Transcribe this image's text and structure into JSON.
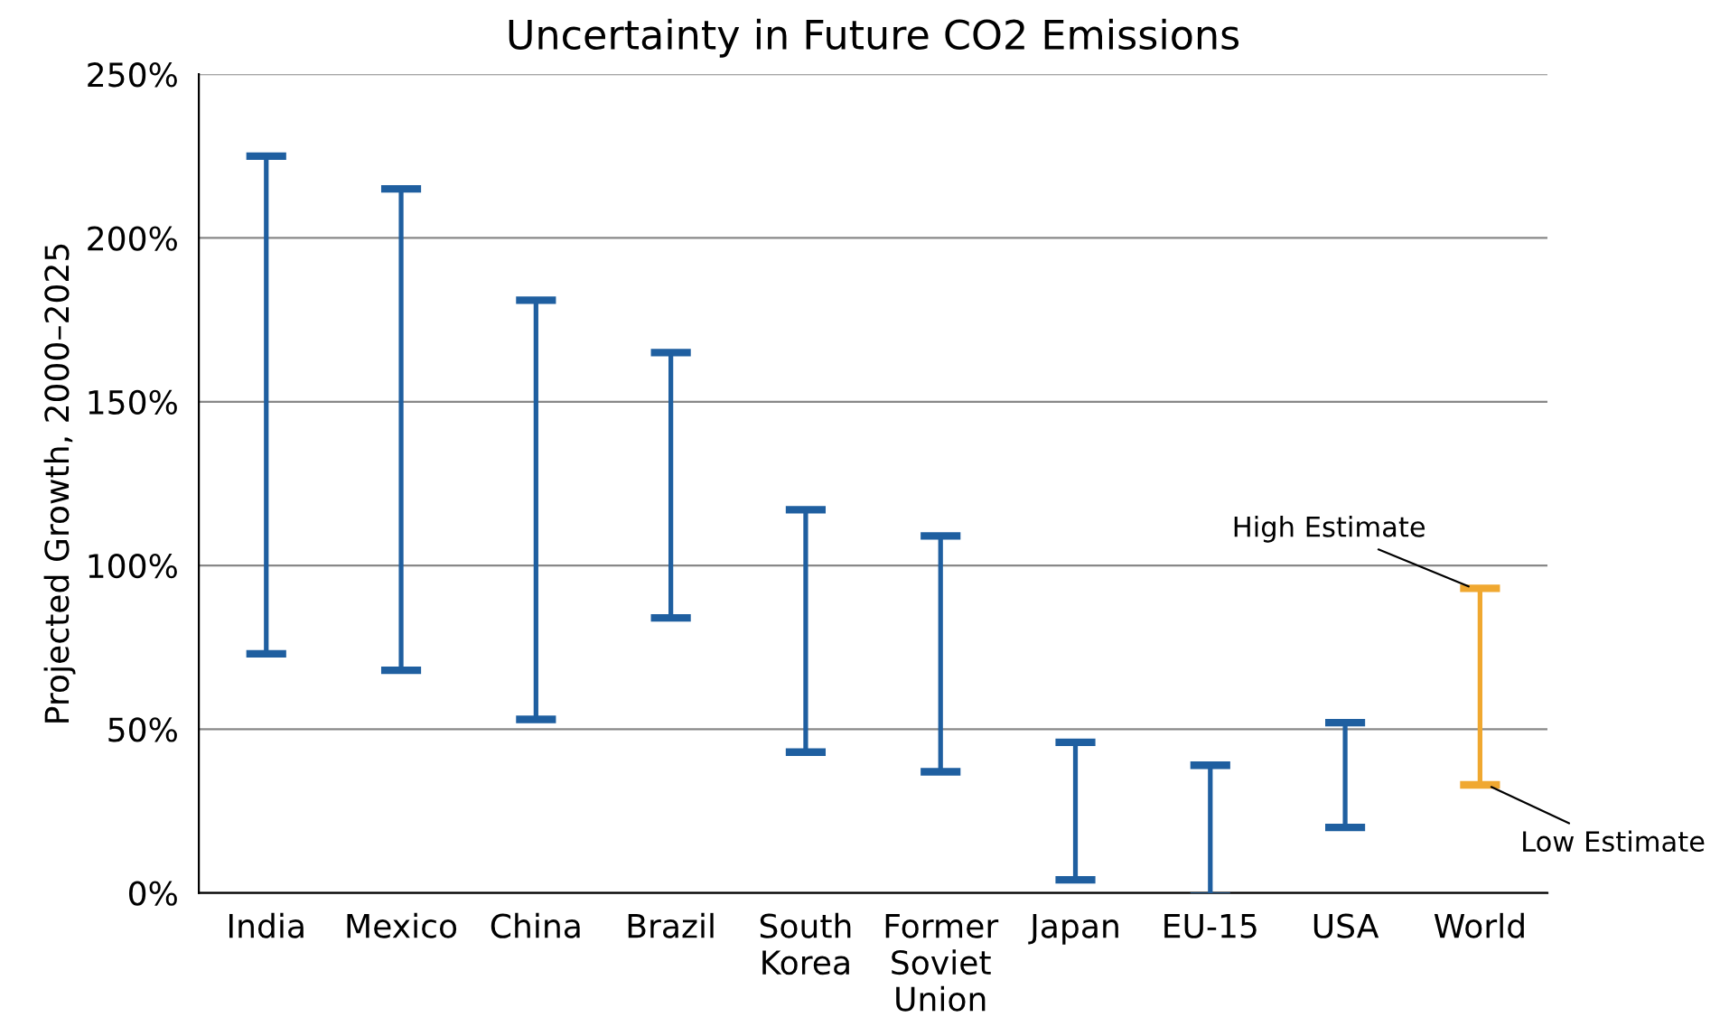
{
  "chart_data": {
    "type": "bar",
    "title": "Uncertainty in Future CO2 Emissions",
    "ylabel": "Projected Growth, 2000–2025",
    "categories": [
      "India",
      "Mexico",
      "China",
      "Brazil",
      "South\nKorea",
      "Former\nSoviet\nUnion",
      "Japan",
      "EU-15",
      "USA",
      "World"
    ],
    "base": [
      73,
      68,
      53,
      84,
      43,
      37,
      4,
      -1,
      20,
      33
    ],
    "values": [
      152,
      147,
      128,
      81,
      74,
      72,
      42,
      40,
      32,
      60
    ],
    "colors": [
      "#1f5fa0",
      "#1f5fa0",
      "#1f5fa0",
      "#1f5fa0",
      "#1f5fa0",
      "#1f5fa0",
      "#1f5fa0",
      "#1f5fa0",
      "#1f5fa0",
      "#f0a830"
    ],
    "ylim": [
      0,
      250
    ],
    "yticks": [
      {
        "value": 0,
        "label": "0%"
      },
      {
        "value": 50,
        "label": "50%"
      },
      {
        "value": 100,
        "label": "100%"
      },
      {
        "value": 150,
        "label": "150%"
      },
      {
        "value": 200,
        "label": "200%"
      },
      {
        "value": 250,
        "label": "250%"
      }
    ],
    "grid": "y",
    "annotations": [
      {
        "text": "High Estimate",
        "x": "World",
        "y": 93
      },
      {
        "text": "Low Estimate",
        "x": "World",
        "y": 33
      }
    ]
  }
}
